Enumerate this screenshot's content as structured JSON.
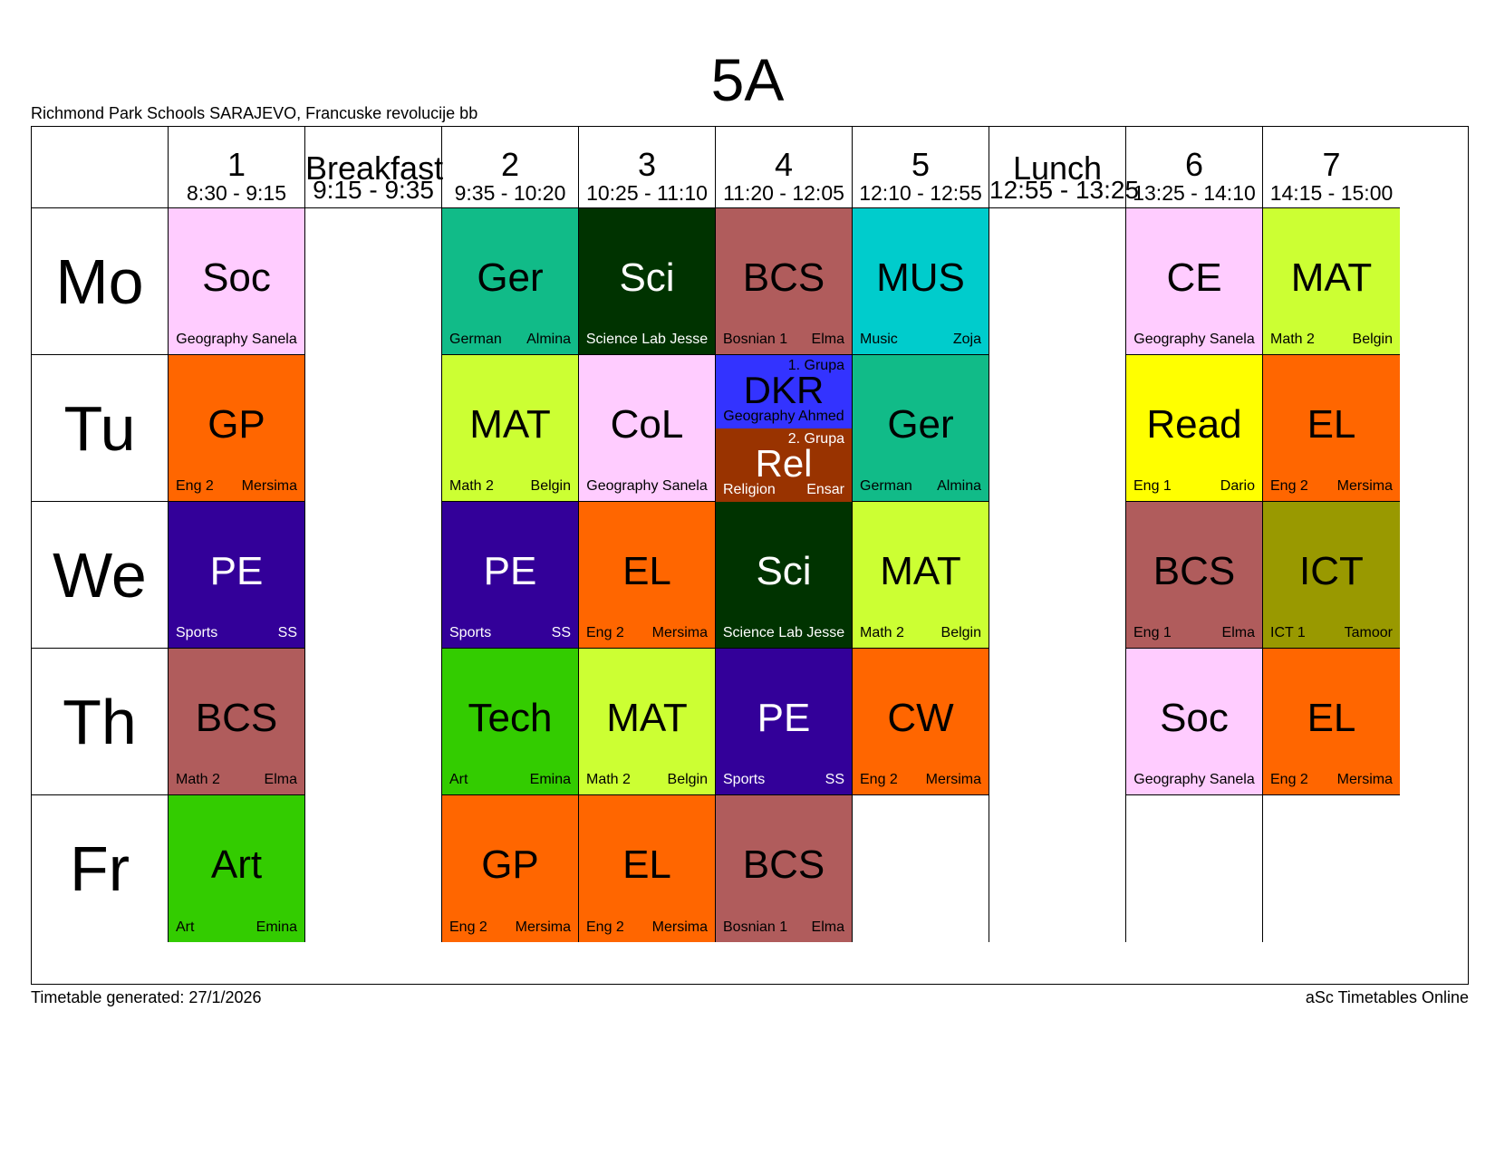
{
  "title": "5A",
  "school": "Richmond Park Schools SARAJEVO, Francuske revolucije bb",
  "periods": [
    {
      "num": "1",
      "time": "8:30 - 9:15"
    },
    {
      "num": "Breakfast",
      "time": "9:15 - 9:35"
    },
    {
      "num": "2",
      "time": "9:35 - 10:20"
    },
    {
      "num": "3",
      "time": "10:25 - 11:10"
    },
    {
      "num": "4",
      "time": "11:20 - 12:05"
    },
    {
      "num": "5",
      "time": "12:10 - 12:55"
    },
    {
      "num": "Lunch",
      "time": "12:55 - 13:25"
    },
    {
      "num": "6",
      "time": "13:25 - 14:10"
    },
    {
      "num": "7",
      "time": "14:15 - 15:00"
    }
  ],
  "days": [
    "Mo",
    "Tu",
    "We",
    "Th",
    "Fr"
  ],
  "lessons": [
    {
      "day": 0,
      "col": 0,
      "subject": "Soc",
      "room": "Geography Sanela",
      "teacher": "",
      "color": "#ffccff",
      "light": false
    },
    {
      "day": 0,
      "col": 2,
      "subject": "Ger",
      "room": "German",
      "teacher": "Almina",
      "color": "#11bb88",
      "light": false
    },
    {
      "day": 0,
      "col": 3,
      "subject": "Sci",
      "room": "Science Lab Jesse",
      "teacher": "",
      "color": "#003300",
      "light": true
    },
    {
      "day": 0,
      "col": 4,
      "subject": "BCS",
      "room": "Bosnian 1",
      "teacher": "Elma",
      "color": "#b05c5c",
      "light": false
    },
    {
      "day": 0,
      "col": 5,
      "subject": "MUS",
      "room": "Music",
      "teacher": "Zoja",
      "color": "#00cccc",
      "light": false
    },
    {
      "day": 0,
      "col": 7,
      "subject": "CE",
      "room": "Geography Sanela",
      "teacher": "",
      "color": "#ffccff",
      "light": false
    },
    {
      "day": 0,
      "col": 8,
      "subject": "MAT",
      "room": "Math 2",
      "teacher": "Belgin",
      "color": "#ccff33",
      "light": false
    },
    {
      "day": 1,
      "col": 0,
      "subject": "GP",
      "room": "Eng 2",
      "teacher": "Mersima",
      "color": "#ff6600",
      "light": false
    },
    {
      "day": 1,
      "col": 2,
      "subject": "MAT",
      "room": "Math 2",
      "teacher": "Belgin",
      "color": "#ccff33",
      "light": false
    },
    {
      "day": 1,
      "col": 3,
      "subject": "CoL",
      "room": "Geography Sanela",
      "teacher": "",
      "color": "#ffccff",
      "light": false
    },
    {
      "day": 1,
      "col": 5,
      "subject": "Ger",
      "room": "German",
      "teacher": "Almina",
      "color": "#11bb88",
      "light": false
    },
    {
      "day": 1,
      "col": 7,
      "subject": "Read",
      "room": "Eng 1",
      "teacher": "Dario",
      "color": "#ffff00",
      "light": false
    },
    {
      "day": 1,
      "col": 8,
      "subject": "EL",
      "room": "Eng 2",
      "teacher": "Mersima",
      "color": "#ff6600",
      "light": false
    },
    {
      "day": 2,
      "col": 0,
      "subject": "PE",
      "room": "Sports",
      "teacher": "SS",
      "color": "#330099",
      "light": true
    },
    {
      "day": 2,
      "col": 2,
      "subject": "PE",
      "room": "Sports",
      "teacher": "SS",
      "color": "#330099",
      "light": true
    },
    {
      "day": 2,
      "col": 3,
      "subject": "EL",
      "room": "Eng 2",
      "teacher": "Mersima",
      "color": "#ff6600",
      "light": false
    },
    {
      "day": 2,
      "col": 4,
      "subject": "Sci",
      "room": "Science Lab Jesse",
      "teacher": "",
      "color": "#003300",
      "light": true
    },
    {
      "day": 2,
      "col": 5,
      "subject": "MAT",
      "room": "Math 2",
      "teacher": "Belgin",
      "color": "#ccff33",
      "light": false
    },
    {
      "day": 2,
      "col": 7,
      "subject": "BCS",
      "room": "Eng 1",
      "teacher": "Elma",
      "color": "#b05c5c",
      "light": false
    },
    {
      "day": 2,
      "col": 8,
      "subject": "ICT",
      "room": "ICT 1",
      "teacher": "Tamoor",
      "color": "#999900",
      "light": false
    },
    {
      "day": 3,
      "col": 0,
      "subject": "BCS",
      "room": "Math 2",
      "teacher": "Elma",
      "color": "#b05c5c",
      "light": false
    },
    {
      "day": 3,
      "col": 2,
      "subject": "Tech",
      "room": "Art",
      "teacher": "Emina",
      "color": "#33cc00",
      "light": false
    },
    {
      "day": 3,
      "col": 3,
      "subject": "MAT",
      "room": "Math 2",
      "teacher": "Belgin",
      "color": "#ccff33",
      "light": false
    },
    {
      "day": 3,
      "col": 4,
      "subject": "PE",
      "room": "Sports",
      "teacher": "SS",
      "color": "#330099",
      "light": true
    },
    {
      "day": 3,
      "col": 5,
      "subject": "CW",
      "room": "Eng 2",
      "teacher": "Mersima",
      "color": "#ff6600",
      "light": false
    },
    {
      "day": 3,
      "col": 7,
      "subject": "Soc",
      "room": "Geography Sanela",
      "teacher": "",
      "color": "#ffccff",
      "light": false
    },
    {
      "day": 3,
      "col": 8,
      "subject": "EL",
      "room": "Eng 2",
      "teacher": "Mersima",
      "color": "#ff6600",
      "light": false
    },
    {
      "day": 4,
      "col": 0,
      "subject": "Art",
      "room": "Art",
      "teacher": "Emina",
      "color": "#33cc00",
      "light": false
    },
    {
      "day": 4,
      "col": 2,
      "subject": "GP",
      "room": "Eng 2",
      "teacher": "Mersima",
      "color": "#ff6600",
      "light": false
    },
    {
      "day": 4,
      "col": 3,
      "subject": "EL",
      "room": "Eng 2",
      "teacher": "Mersima",
      "color": "#ff6600",
      "light": false
    },
    {
      "day": 4,
      "col": 4,
      "subject": "BCS",
      "room": "Bosnian 1",
      "teacher": "Elma",
      "color": "#b05c5c",
      "light": false
    }
  ],
  "split_lesson": {
    "day": 1,
    "col": 4,
    "groups": [
      {
        "group": "1. Grupa",
        "subject": "DKR",
        "room": "Geography Ahmed",
        "teacher": "",
        "color": "#3333ff",
        "light": false
      },
      {
        "group": "2. Grupa",
        "subject": "Rel",
        "room": "Religion",
        "teacher": "Ensar",
        "color": "#993300",
        "light": true
      }
    ]
  },
  "footer": {
    "generated": "Timetable generated: 27/1/2026",
    "brand": "aSc Timetables Online"
  }
}
